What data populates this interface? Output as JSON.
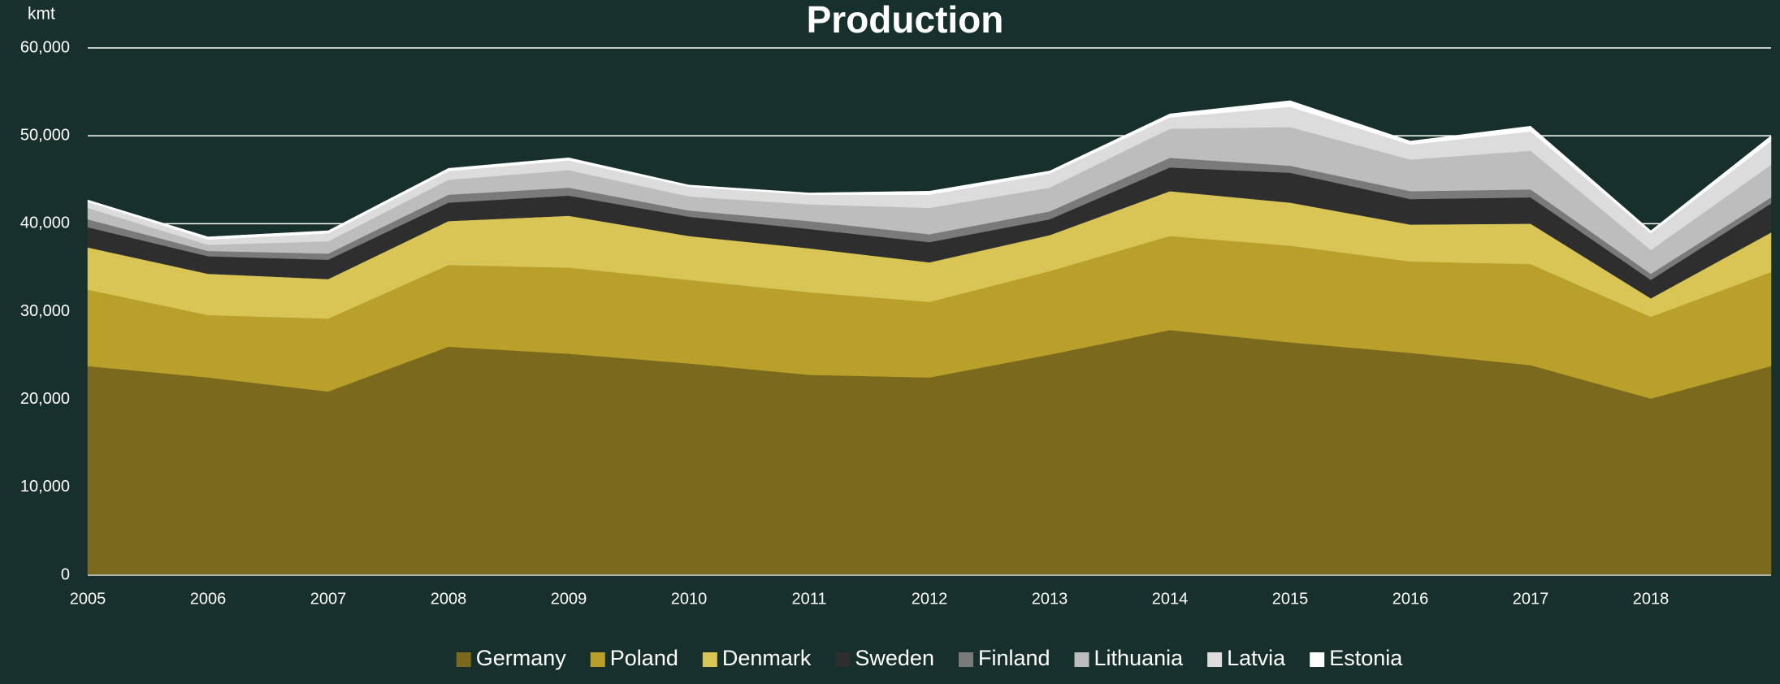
{
  "chart_data": {
    "type": "stacked_area",
    "title": "Production",
    "y_label": "kmt",
    "categories": [
      "2005",
      "2006",
      "2007",
      "2008",
      "2009",
      "2010",
      "2011",
      "2012",
      "2013",
      "2014",
      "2015",
      "2016",
      "2017",
      "2018",
      null
    ],
    "series": [
      {
        "name": "Germany",
        "color": "#7b6a1e",
        "values": [
          23800,
          22500,
          20900,
          26000,
          25200,
          24100,
          22800,
          22500,
          25100,
          27900,
          26500,
          25300,
          23900,
          20100,
          23800
        ]
      },
      {
        "name": "Poland",
        "color": "#b8a02a",
        "values": [
          8700,
          7100,
          8300,
          9300,
          9800,
          9500,
          9400,
          8600,
          9500,
          10700,
          11000,
          10400,
          11500,
          9300,
          10700
        ]
      },
      {
        "name": "Denmark",
        "color": "#d9c456",
        "values": [
          4800,
          4700,
          4500,
          5000,
          5900,
          5000,
          5000,
          4500,
          4100,
          5100,
          4900,
          4200,
          4600,
          2100,
          4500
        ]
      },
      {
        "name": "Sweden",
        "color": "#2e2e2e",
        "values": [
          2300,
          2000,
          2200,
          2100,
          2300,
          2200,
          2200,
          2300,
          1800,
          2700,
          3400,
          2900,
          3000,
          2100,
          3300
        ]
      },
      {
        "name": "Finland",
        "color": "#7a7a7a",
        "values": [
          900,
          600,
          700,
          900,
          900,
          700,
          900,
          900,
          900,
          1100,
          800,
          900,
          900,
          700,
          700
        ]
      },
      {
        "name": "Lithuania",
        "color": "#bdbdbd",
        "values": [
          1300,
          700,
          1400,
          1700,
          2000,
          1600,
          1900,
          3000,
          2700,
          3300,
          4400,
          3600,
          4400,
          2700,
          3700
        ]
      },
      {
        "name": "Latvia",
        "color": "#dcdcdc",
        "values": [
          700,
          600,
          900,
          1000,
          1100,
          1100,
          1100,
          1500,
          1600,
          1300,
          2300,
          1700,
          2200,
          1900,
          2700
        ]
      },
      {
        "name": "Estonia",
        "color": "#ffffff",
        "values": [
          200,
          300,
          300,
          300,
          300,
          200,
          200,
          400,
          300,
          400,
          700,
          400,
          600,
          300,
          600
        ]
      }
    ],
    "ylim": [
      0,
      60000
    ],
    "yticks": [
      0,
      {
        "value": 10000,
        "label": "10,000"
      },
      {
        "value": 20000,
        "label": "20,000"
      },
      {
        "value": 30000,
        "label": "30,000"
      },
      {
        "value": 40000,
        "label": "40,000"
      },
      {
        "value": 50000,
        "label": "50,000"
      },
      {
        "value": 60000,
        "label": "60,000"
      }
    ],
    "grid": true,
    "legend": "bottom"
  }
}
